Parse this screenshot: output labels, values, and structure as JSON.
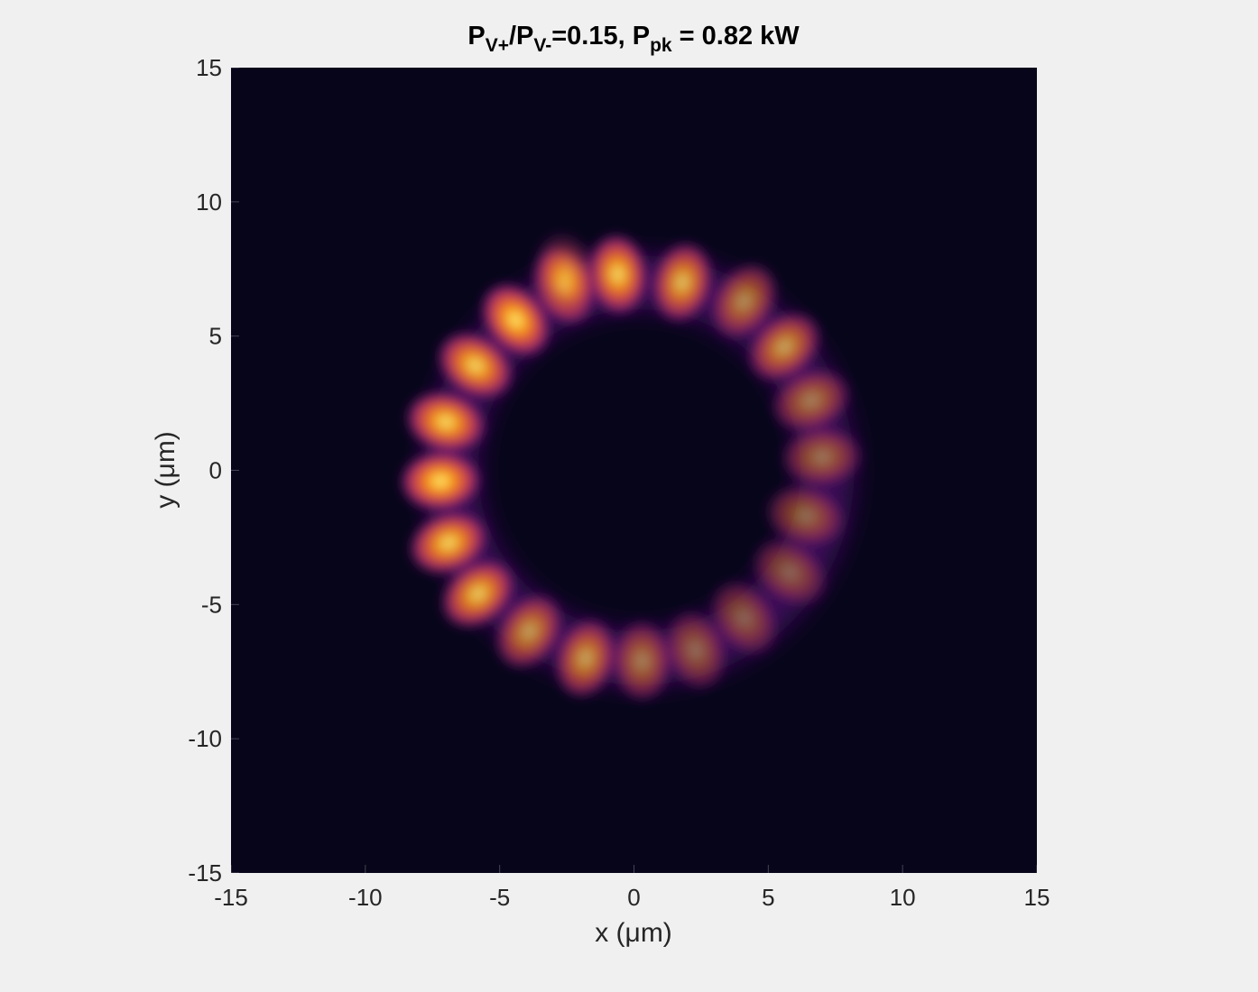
{
  "chart_data": {
    "type": "heatmap",
    "title": {
      "parts": [
        {
          "text": "P",
          "sub": false
        },
        {
          "text": "V+",
          "sub": true
        },
        {
          "text": "/P",
          "sub": false
        },
        {
          "text": "V-",
          "sub": true
        },
        {
          "text": "=0.15, P",
          "sub": false
        },
        {
          "text": "pk",
          "sub": true
        },
        {
          "text": " = 0.82 kW",
          "sub": false
        }
      ]
    },
    "xlabel": "x (μm)",
    "ylabel": "y (μm)",
    "xlim": [
      -15,
      15
    ],
    "ylim": [
      -15,
      15
    ],
    "xticks": [
      -15,
      -10,
      -5,
      0,
      5,
      10,
      15
    ],
    "yticks": [
      -15,
      -10,
      -5,
      0,
      5,
      10,
      15
    ],
    "colormap": "inferno",
    "background_color": "#07051a",
    "ring": {
      "center": [
        0.2,
        0
      ],
      "radius": 7.0,
      "lobe_count": 21
    },
    "lobes": [
      {
        "x": -0.6,
        "y": 7.3,
        "intensity": 0.95
      },
      {
        "x": 1.8,
        "y": 7.0,
        "intensity": 0.85
      },
      {
        "x": 4.1,
        "y": 6.3,
        "intensity": 0.62
      },
      {
        "x": 5.6,
        "y": 4.6,
        "intensity": 0.72
      },
      {
        "x": 6.6,
        "y": 2.6,
        "intensity": 0.55
      },
      {
        "x": 7.0,
        "y": 0.5,
        "intensity": 0.5
      },
      {
        "x": 6.4,
        "y": -1.7,
        "intensity": 0.47
      },
      {
        "x": 5.8,
        "y": -3.8,
        "intensity": 0.42
      },
      {
        "x": 4.1,
        "y": -5.5,
        "intensity": 0.42
      },
      {
        "x": 2.3,
        "y": -6.7,
        "intensity": 0.45
      },
      {
        "x": 0.3,
        "y": -7.1,
        "intensity": 0.55
      },
      {
        "x": -1.8,
        "y": -7.0,
        "intensity": 0.72
      },
      {
        "x": -3.9,
        "y": -6.0,
        "intensity": 0.7
      },
      {
        "x": -5.8,
        "y": -4.6,
        "intensity": 0.9
      },
      {
        "x": -6.9,
        "y": -2.7,
        "intensity": 0.95
      },
      {
        "x": -7.2,
        "y": -0.4,
        "intensity": 1.0
      },
      {
        "x": -7.0,
        "y": 1.8,
        "intensity": 0.97
      },
      {
        "x": -5.9,
        "y": 3.9,
        "intensity": 0.95
      },
      {
        "x": -4.4,
        "y": 5.6,
        "intensity": 1.0
      },
      {
        "x": -2.6,
        "y": 6.9,
        "intensity": 0.92
      },
      {
        "x": -2.5,
        "y": 7.4,
        "intensity": 0.35
      }
    ]
  }
}
